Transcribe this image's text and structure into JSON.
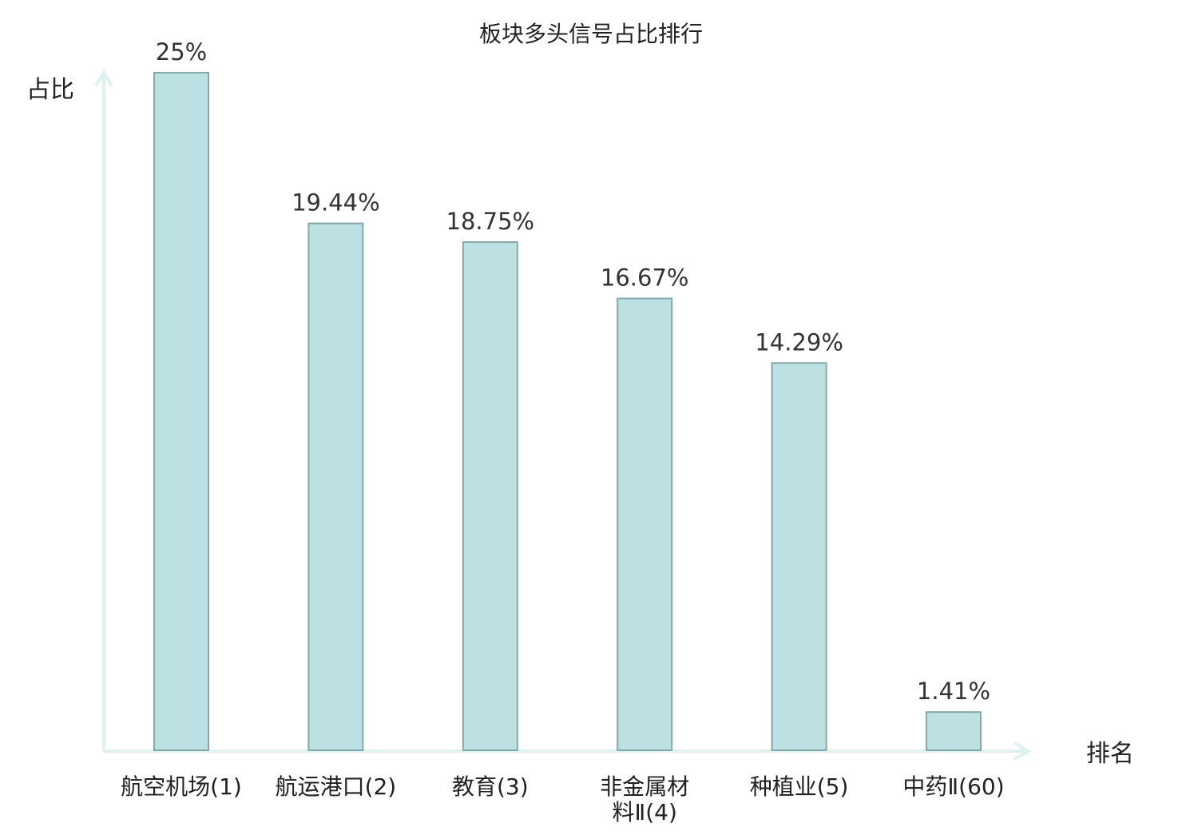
{
  "chart_data": {
    "type": "bar",
    "title": "板块多头信号占比排行",
    "ylabel": "占比",
    "xlabel": "排名",
    "categories": [
      [
        "航空机场(1)"
      ],
      [
        "航运港口(2)"
      ],
      [
        "教育(3)"
      ],
      [
        "非金属材",
        "料Ⅱ(4)"
      ],
      [
        "种植业(5)"
      ],
      [
        "中药Ⅱ(60)"
      ]
    ],
    "values": [
      25,
      19.44,
      18.75,
      16.67,
      14.29,
      1.41
    ],
    "value_labels": [
      "25%",
      "19.44%",
      "18.75%",
      "16.67%",
      "14.29%",
      "1.41%"
    ],
    "highlight_index": 5,
    "ylim": [
      0,
      25
    ],
    "grid": false,
    "colors": {
      "bar_fill": "#bde0e2",
      "bar_stroke": "#86a7a9",
      "axis": "#e0f2f0",
      "text": "#222222",
      "highlight_text": "#e8191c"
    }
  }
}
